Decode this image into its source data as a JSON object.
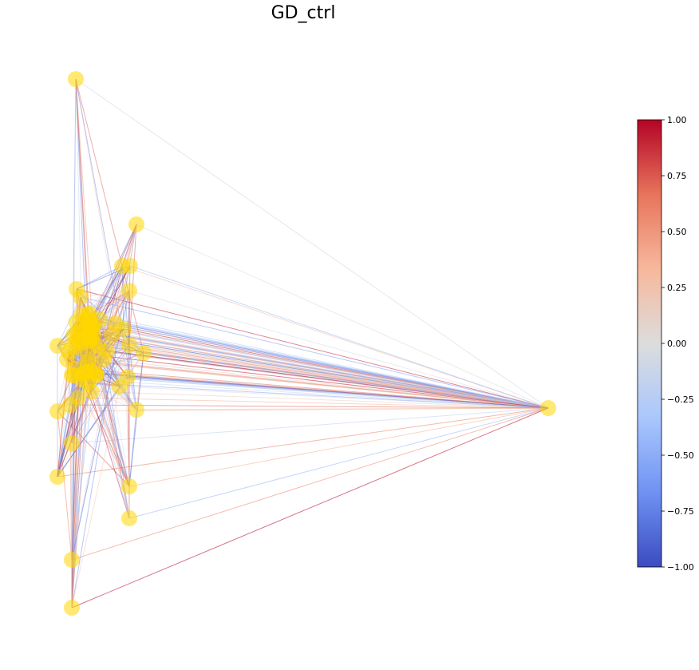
{
  "title": "GD_ctrl",
  "node_color": "#ffd700",
  "edge_colormap": [
    "#3b4cc0",
    "#6f92f3",
    "#aac7fd",
    "#dcdddd",
    "#f7b89c",
    "#e7745b",
    "#b40426"
  ],
  "colorbar": {
    "min": -1.0,
    "max": 1.0,
    "ticks": [
      "1.00",
      "0.75",
      "0.50",
      "0.25",
      "0.00",
      "−0.25",
      "−0.50",
      "−0.75",
      "−1.00"
    ]
  }
}
